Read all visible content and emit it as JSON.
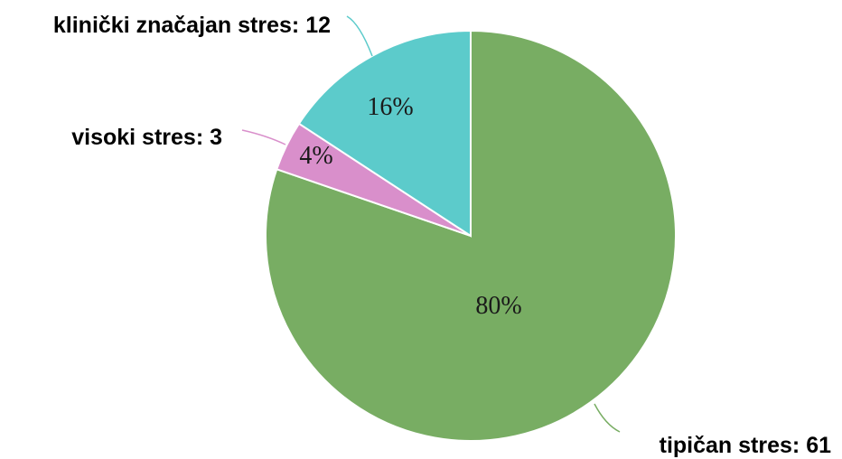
{
  "chart_data": {
    "type": "pie",
    "start_angle_deg": 0,
    "direction": "clockwise",
    "slices": [
      {
        "label": "tipičan stres: 61",
        "value": 61,
        "percent_label": "80%",
        "color": "#78ad63"
      },
      {
        "label": "visoki stres: 3",
        "value": 3,
        "percent_label": "4%",
        "color": "#d98fcb"
      },
      {
        "label": "klinički značajan stres: 12",
        "value": 12,
        "percent_label": "16%",
        "color": "#5ccbcb"
      }
    ]
  }
}
